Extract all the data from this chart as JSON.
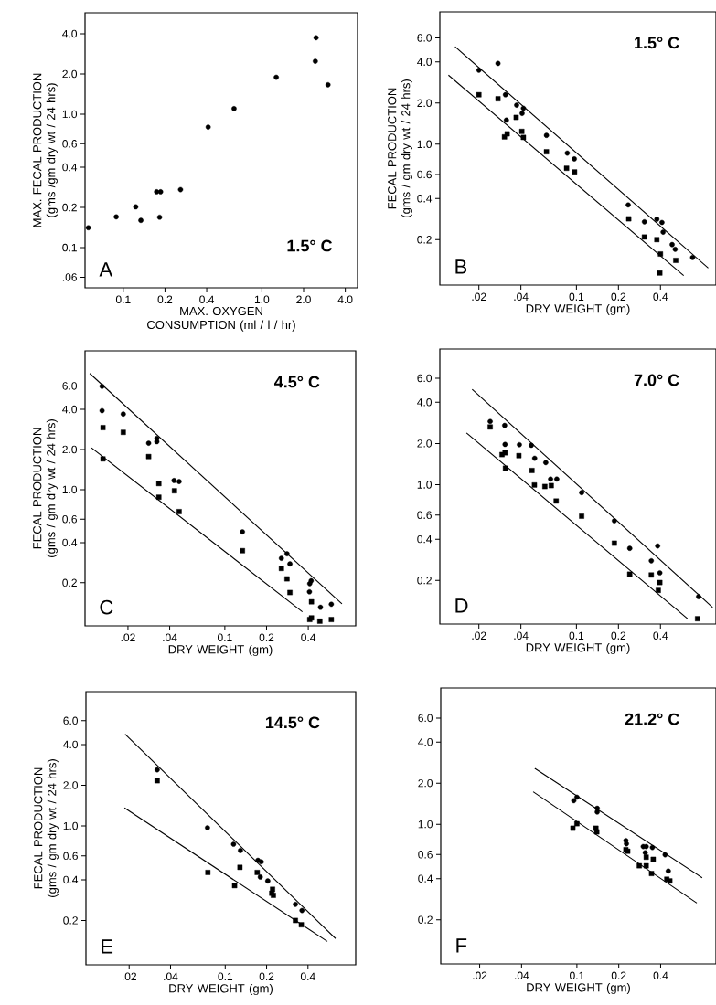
{
  "chart_data": [
    {
      "type": "scatter",
      "log": "xy",
      "xlabel": "MAX. OXYGEN CONSUMPTION (ml / l / hr)",
      "ylabel": "MAX. FECAL PRODUCTION (gms /gm dry wt / 24 hrs)",
      "annotations": [
        "A",
        "1.5° C"
      ],
      "xlim": [
        0.053,
        4.9
      ],
      "ylim": [
        0.05,
        5.75
      ],
      "xticks": [
        {
          "value": 0.1,
          "label": "0.1"
        },
        {
          "value": 0.2,
          "label": "0.2"
        },
        {
          "value": 0.4,
          "label": "0.4"
        },
        {
          "value": 1.0,
          "label": "1.0"
        },
        {
          "value": 2.0,
          "label": "2.0"
        },
        {
          "value": 4.0,
          "label": "4.0"
        }
      ],
      "yticks": [
        {
          "value": 0.06,
          "label": ".06"
        },
        {
          "value": 0.1,
          "label": "0.1"
        },
        {
          "value": 0.2,
          "label": "0.2"
        },
        {
          "value": 0.4,
          "label": "0.4"
        },
        {
          "value": 0.6,
          "label": "0.6"
        },
        {
          "value": 1.0,
          "label": "1.0"
        },
        {
          "value": 2.0,
          "label": "2.0"
        },
        {
          "value": 4.0,
          "label": "4.0"
        }
      ],
      "series": [
        {
          "color": "#000000",
          "marker": "circle",
          "x": [
            0.056,
            0.089,
            0.123,
            0.134,
            0.174,
            0.186,
            0.183,
            0.259,
            0.41,
            0.63,
            1.27,
            2.46,
            2.43,
            3.0
          ],
          "values": [
            0.141,
            0.17,
            0.202,
            0.16,
            0.262,
            0.262,
            0.169,
            0.272,
            0.8,
            1.1,
            1.89,
            3.74,
            2.49,
            1.66
          ]
        }
      ]
    },
    {
      "type": "scatter",
      "log": "xy",
      "xlabel": "DRY WEIGHT (gm)",
      "ylabel": "FECAL PRODUCTION (gms / gm dry wt / 24 hrs)",
      "annotations": [
        "B",
        "1.5° C"
      ],
      "xlim": [
        0.0105,
        1.0
      ],
      "ylim": [
        0.093,
        9.3
      ],
      "xticks": [
        {
          "value": 0.02,
          "label": ".02"
        },
        {
          "value": 0.04,
          "label": ".04"
        },
        {
          "value": 0.1,
          "label": "0.1"
        },
        {
          "value": 0.2,
          "label": "0.2"
        },
        {
          "value": 0.4,
          "label": "0.4"
        }
      ],
      "yticks": [
        {
          "value": 0.2,
          "label": "0.2"
        },
        {
          "value": 0.4,
          "label": "0.4"
        },
        {
          "value": 0.6,
          "label": "0.6"
        },
        {
          "value": 1.0,
          "label": "1.0"
        },
        {
          "value": 2.0,
          "label": "2.0"
        },
        {
          "value": 4.0,
          "label": "4.0"
        },
        {
          "value": 6.0,
          "label": "6.0"
        }
      ],
      "series": [
        {
          "color": "#000000",
          "marker": "circle",
          "x": [
            0.02,
            0.0274,
            0.031,
            0.0315,
            0.0373,
            0.0417,
            0.0408,
            0.061,
            0.086,
            0.0966,
            0.235,
            0.307,
            0.377,
            0.41,
            0.418,
            0.485,
            0.51,
            0.68
          ],
          "values": [
            3.48,
            3.9,
            2.3,
            1.5,
            1.93,
            1.83,
            1.68,
            1.16,
            0.86,
            0.78,
            0.359,
            0.27,
            0.282,
            0.267,
            0.227,
            0.184,
            0.17,
            0.148
          ]
        },
        {
          "color": "#000000",
          "marker": "square",
          "x": [
            0.02,
            0.0274,
            0.0305,
            0.0319,
            0.037,
            0.0406,
            0.0417,
            0.061,
            0.085,
            0.097,
            0.237,
            0.307,
            0.377,
            0.4,
            0.396,
            0.515
          ],
          "values": [
            2.3,
            2.15,
            1.13,
            1.19,
            1.57,
            1.24,
            1.12,
            0.88,
            0.666,
            0.626,
            0.284,
            0.209,
            0.2,
            0.157,
            0.114,
            0.141
          ]
        },
        {
          "type": "line",
          "color": "#000000",
          "x": [
            0.0135,
            0.88
          ],
          "values": [
            5.17,
            0.124
          ]
        },
        {
          "type": "line",
          "color": "#000000",
          "x": [
            0.0121,
            0.587
          ],
          "values": [
            3.2,
            0.109
          ]
        }
      ]
    },
    {
      "type": "scatter",
      "log": "xy",
      "xlabel": "DRY WEIGHT (gm)",
      "ylabel": "FECAL PRODUCTION (gms / gm dry wt / 24 hrs)",
      "annotations": [
        "C",
        "4.5° C"
      ],
      "xlim": [
        0.0098,
        0.88
      ],
      "ylim": [
        0.095,
        11
      ],
      "xticks": [
        {
          "value": 0.02,
          "label": ".02"
        },
        {
          "value": 0.04,
          "label": ".04"
        },
        {
          "value": 0.1,
          "label": "0.1"
        },
        {
          "value": 0.2,
          "label": "0.2"
        },
        {
          "value": 0.4,
          "label": "0.4"
        }
      ],
      "yticks": [
        {
          "value": 0.2,
          "label": "0.2"
        },
        {
          "value": 0.4,
          "label": "0.4"
        },
        {
          "value": 0.6,
          "label": "0.6"
        },
        {
          "value": 1.0,
          "label": "1.0"
        },
        {
          "value": 2.0,
          "label": "2.0"
        },
        {
          "value": 4.0,
          "label": "4.0"
        },
        {
          "value": 6.0,
          "label": "6.0"
        }
      ],
      "series": [
        {
          "color": "#000000",
          "marker": "circle",
          "x": [
            0.013,
            0.013,
            0.0185,
            0.0282,
            0.0323,
            0.0323,
            0.043,
            0.0468,
            0.134,
            0.256,
            0.281,
            0.295,
            0.41,
            0.42,
            0.408,
            0.425,
            0.49,
            0.587
          ],
          "values": [
            5.96,
            3.91,
            3.69,
            2.23,
            2.29,
            2.42,
            1.17,
            1.15,
            0.482,
            0.305,
            0.33,
            0.277,
            0.197,
            0.207,
            0.171,
            null,
            0.131,
            0.138
          ]
        },
        {
          "color": "#000000",
          "marker": "square",
          "x": [
            0.0132,
            0.0185,
            0.0282,
            0.0132,
            0.0334,
            0.0334,
            0.0433,
            0.0468,
            0.134,
            0.256,
            0.281,
            0.295,
            0.422,
            0.422,
            0.485,
            0.587,
            0.41
          ],
          "values": [
            2.92,
            2.69,
            1.77,
            1.7,
            1.11,
            0.877,
            0.98,
            0.684,
            0.348,
            0.256,
            0.214,
            0.169,
            0.144,
            0.109,
            0.103,
            0.106,
            0.106
          ]
        },
        {
          "type": "line",
          "color": "#000000",
          "x": [
            0.0106,
            0.7
          ],
          "values": [
            7.44,
            0.139
          ]
        },
        {
          "type": "line",
          "color": "#000000",
          "x": [
            0.0109,
            0.363
          ],
          "values": [
            2.06,
            0.121
          ]
        }
      ]
    },
    {
      "type": "scatter",
      "log": "xy",
      "xlabel": "DRY WEIGHT (gm)",
      "annotations": [
        "D",
        "7.0° C"
      ],
      "xlim": [
        0.0105,
        1.0
      ],
      "ylim": [
        0.096,
        9.8
      ],
      "xticks": [
        {
          "value": 0.02,
          "label": ".02"
        },
        {
          "value": 0.04,
          "label": ".04"
        },
        {
          "value": 0.1,
          "label": "0.1"
        },
        {
          "value": 0.2,
          "label": "0.2"
        },
        {
          "value": 0.4,
          "label": "0.4"
        }
      ],
      "yticks": [
        {
          "value": 0.2,
          "label": "0.2"
        },
        {
          "value": 0.4,
          "label": "0.4"
        },
        {
          "value": 0.6,
          "label": "0.6"
        },
        {
          "value": 1.0,
          "label": "1.0"
        },
        {
          "value": 2.0,
          "label": "2.0"
        },
        {
          "value": 4.0,
          "label": "4.0"
        },
        {
          "value": 6.0,
          "label": "6.0"
        }
      ],
      "series": [
        {
          "color": "#000000",
          "marker": "circle",
          "x": [
            0.0241,
            0.0306,
            0.0308,
            0.039,
            0.0475,
            0.0502,
            0.0603,
            0.0653,
            0.0723,
            0.109,
            0.187,
            0.241,
            0.344,
            0.382,
            0.396,
            0.75
          ],
          "values": [
            2.9,
            2.71,
            1.97,
            1.96,
            1.94,
            1.56,
            1.45,
            1.1,
            1.1,
            0.875,
            0.545,
            0.343,
            0.278,
            0.357,
            0.227,
            0.152
          ]
        },
        {
          "color": "#000000",
          "marker": "square",
          "x": [
            0.0241,
            0.0293,
            0.0308,
            0.031,
            0.0387,
            0.048,
            0.05,
            0.0594,
            0.066,
            0.0716,
            0.109,
            0.187,
            0.241,
            0.344,
            0.396,
            0.386,
            0.738
          ],
          "values": [
            2.64,
            1.66,
            1.71,
            1.32,
            1.63,
            1.27,
            0.995,
            0.97,
            0.985,
            0.76,
            0.589,
            0.374,
            0.222,
            0.219,
            0.193,
            0.169,
            0.105
          ]
        },
        {
          "type": "line",
          "color": "#000000",
          "x": [
            0.0179,
            0.946
          ],
          "values": [
            4.97,
            0.127
          ]
        },
        {
          "type": "line",
          "color": "#000000",
          "x": [
            0.0163,
            0.625
          ],
          "values": [
            2.39,
            0.105
          ]
        }
      ]
    },
    {
      "type": "scatter",
      "log": "xy",
      "xlabel": "DRY WEIGHT (gm)",
      "ylabel": "FECAL PRODUCTION (gms / gm dry wt / 24 hrs)",
      "annotations": [
        "E",
        "14.5° C"
      ],
      "xlim": [
        0.0097,
        0.89
      ],
      "ylim": [
        0.094,
        9.85
      ],
      "xticks": [
        {
          "value": 0.02,
          "label": ".02"
        },
        {
          "value": 0.04,
          "label": ".04"
        },
        {
          "value": 0.1,
          "label": "0.1"
        },
        {
          "value": 0.2,
          "label": "0.2"
        },
        {
          "value": 0.4,
          "label": "0.4"
        }
      ],
      "yticks": [
        {
          "value": 0.2,
          "label": "0.2"
        },
        {
          "value": 0.4,
          "label": "0.4"
        },
        {
          "value": 0.6,
          "label": "0.6"
        },
        {
          "value": 1.0,
          "label": "1.0"
        },
        {
          "value": 2.0,
          "label": "2.0"
        },
        {
          "value": 4.0,
          "label": "4.0"
        },
        {
          "value": 6.0,
          "label": "6.0"
        }
      ],
      "series": [
        {
          "color": "#000000",
          "marker": "circle",
          "x": [
            0.032,
            0.0743,
            0.115,
            0.129,
            0.173,
            0.183,
            0.18,
            0.204,
            0.324,
            0.362
          ],
          "values": [
            2.6,
            0.97,
            0.733,
            0.658,
            0.557,
            0.543,
            0.419,
            0.392,
            0.263,
            0.237
          ]
        },
        {
          "color": "#000000",
          "marker": "square",
          "x": [
            0.032,
            0.0748,
            0.128,
            0.117,
            0.171,
            0.221,
            0.218,
            0.224,
            0.324,
            0.358
          ],
          "values": [
            2.16,
            0.453,
            0.494,
            0.362,
            0.453,
            0.34,
            0.318,
            0.307,
            0.2,
            0.186
          ]
        },
        {
          "type": "line",
          "color": "#000000",
          "x": [
            0.0187,
            0.635
          ],
          "values": [
            4.77,
            0.147
          ]
        },
        {
          "type": "line",
          "color": "#000000",
          "x": [
            0.0185,
            0.553
          ],
          "values": [
            1.36,
            0.14
          ]
        }
      ]
    },
    {
      "type": "scatter",
      "log": "xy",
      "xlabel": "DRY WEIGHT (gm)",
      "annotations": [
        "F",
        "21.2° C"
      ],
      "xlim": [
        0.0105,
        1.0
      ],
      "ylim": [
        0.095,
        9.96
      ],
      "xticks": [
        {
          "value": 0.02,
          "label": ".02"
        },
        {
          "value": 0.04,
          "label": ".04"
        },
        {
          "value": 0.1,
          "label": "0.1"
        },
        {
          "value": 0.2,
          "label": "0.2"
        },
        {
          "value": 0.4,
          "label": "0.4"
        }
      ],
      "yticks": [
        {
          "value": 0.2,
          "label": "0.2"
        },
        {
          "value": 0.4,
          "label": "0.4"
        },
        {
          "value": 0.6,
          "label": "0.6"
        },
        {
          "value": 1.0,
          "label": "1.0"
        },
        {
          "value": 2.0,
          "label": "2.0"
        },
        {
          "value": 4.0,
          "label": "4.0"
        },
        {
          "value": 6.0,
          "label": "6.0"
        }
      ],
      "series": [
        {
          "color": "#000000",
          "marker": "circle",
          "x": [
            0.095,
            0.1,
            0.14,
            0.14,
            0.225,
            0.227,
            0.3,
            0.315,
            0.349,
            0.31,
            0.431,
            0.454
          ],
          "values": [
            1.49,
            1.58,
            1.31,
            1.23,
            0.76,
            0.72,
            0.687,
            0.687,
            0.676,
            0.62,
            0.598,
            0.455
          ]
        },
        {
          "color": "#000000",
          "marker": "square",
          "x": [
            0.0936,
            0.1,
            0.137,
            0.139,
            0.225,
            0.232,
            0.281,
            0.315,
            0.315,
            0.354,
            0.344,
            0.443,
            0.466
          ],
          "values": [
            0.936,
            1.01,
            0.936,
            0.88,
            0.652,
            0.635,
            0.497,
            0.497,
            0.574,
            0.554,
            0.436,
            0.396,
            0.385
          ]
        },
        {
          "type": "line",
          "color": "#000000",
          "x": [
            0.0498,
            0.796
          ],
          "values": [
            2.57,
            0.406
          ]
        },
        {
          "type": "line",
          "color": "#000000",
          "x": [
            0.0485,
            0.728
          ],
          "values": [
            1.73,
            0.265
          ]
        }
      ]
    }
  ]
}
